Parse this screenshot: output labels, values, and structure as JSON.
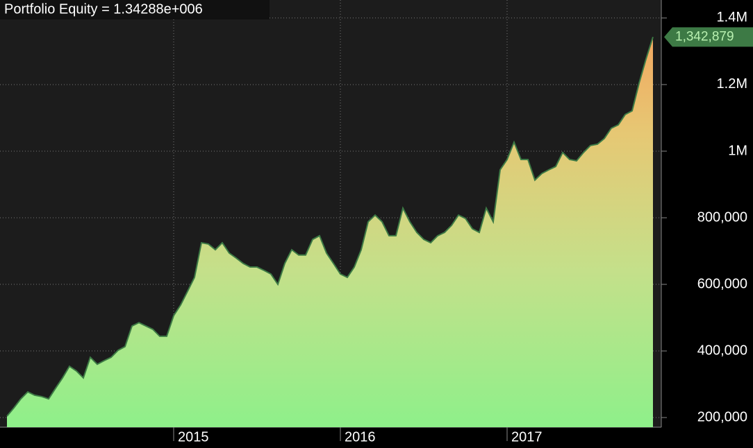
{
  "chart_data": {
    "type": "area",
    "title": "Portfolio Equity = 1.34288e+006",
    "categories": [
      null,
      null,
      null,
      null,
      null,
      null,
      null,
      null,
      null,
      null,
      null,
      null,
      null,
      null,
      null,
      null,
      null,
      null,
      null,
      null,
      null,
      null,
      null,
      null,
      "2015",
      null,
      null,
      null,
      null,
      null,
      null,
      null,
      null,
      null,
      null,
      null,
      null,
      null,
      null,
      null,
      null,
      null,
      null,
      null,
      null,
      null,
      null,
      null,
      "2016",
      null,
      null,
      null,
      null,
      null,
      null,
      null,
      null,
      null,
      null,
      null,
      null,
      null,
      null,
      null,
      null,
      null,
      null,
      null,
      null,
      null,
      null,
      null,
      "2017",
      null,
      null,
      null,
      null,
      null,
      null,
      null,
      null,
      null,
      null,
      null,
      null,
      null,
      null,
      null,
      null,
      null,
      null,
      null,
      null,
      null
    ],
    "values": [
      204000,
      229000,
      256000,
      277000,
      267000,
      263000,
      256000,
      288000,
      319000,
      354000,
      340000,
      319000,
      381000,
      360000,
      371000,
      381000,
      402000,
      413000,
      475000,
      485000,
      475000,
      465000,
      444000,
      444000,
      506000,
      538000,
      579000,
      621000,
      725000,
      721000,
      704000,
      725000,
      694000,
      679000,
      663000,
      652000,
      652000,
      642000,
      631000,
      600000,
      663000,
      704000,
      688000,
      688000,
      735000,
      746000,
      694000,
      663000,
      631000,
      621000,
      652000,
      704000,
      788000,
      808000,
      788000,
      746000,
      746000,
      829000,
      788000,
      756000,
      735000,
      725000,
      746000,
      756000,
      777000,
      808000,
      798000,
      767000,
      756000,
      829000,
      788000,
      944000,
      975000,
      1027000,
      975000,
      975000,
      913000,
      933000,
      944000,
      954000,
      996000,
      975000,
      971000,
      996000,
      1017000,
      1021000,
      1038000,
      1069000,
      1079000,
      1110000,
      1121000,
      1204000,
      1277000,
      1342879
    ],
    "value_labels": [
      null,
      null,
      null,
      null,
      null,
      null,
      null,
      null,
      null,
      null,
      null,
      null,
      null,
      null,
      null,
      null,
      null,
      null,
      null,
      null,
      null,
      null,
      null,
      null,
      null,
      null,
      null,
      null,
      null,
      null,
      null,
      null,
      null,
      null,
      null,
      null,
      null,
      null,
      null,
      null,
      null,
      null,
      null,
      null,
      null,
      null,
      null,
      null,
      null,
      null,
      null,
      null,
      null,
      null,
      null,
      null,
      null,
      null,
      null,
      null,
      null,
      null,
      null,
      null,
      null,
      null,
      null,
      null,
      null,
      null,
      null,
      null,
      null,
      null,
      null,
      null,
      null,
      null,
      null,
      null,
      null,
      null,
      null,
      null,
      null,
      null,
      null,
      null,
      null,
      null,
      null,
      null,
      null,
      "1,342,879"
    ],
    "color": "#3d7a45",
    "ylim": [
      171000,
      1454000
    ],
    "yticks": [
      {
        "value": 200000,
        "label": "200,000"
      },
      {
        "value": 400000,
        "label": "400,000"
      },
      {
        "value": 600000,
        "label": "600,000"
      },
      {
        "value": 800000,
        "label": "800,000"
      },
      {
        "value": 1000000,
        "label": "1M"
      },
      {
        "value": 1200000,
        "label": "1.2M"
      },
      {
        "value": 1400000,
        "label": "1.4M"
      }
    ],
    "grid": true
  }
}
